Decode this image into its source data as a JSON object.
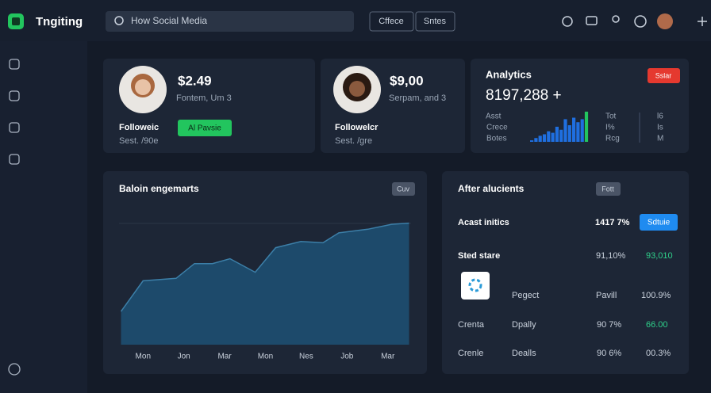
{
  "header": {
    "app_name": "Tngiting",
    "search": "How Social Media",
    "buttons": [
      "Cffece",
      "Sntes"
    ]
  },
  "profile_cards": [
    {
      "amount": "$2.49",
      "subtitle": "Fontem, Um 3",
      "name": "Followeic",
      "button": "Al Pavsie",
      "meta": "Sest. /90e"
    },
    {
      "amount": "$9,00",
      "subtitle": "Serpam, and 3",
      "name": "Followelcr",
      "meta": "Sest. /gre"
    }
  ],
  "analytics": {
    "title": "Analytics",
    "badge": "Sslar",
    "total": "8197,288 +",
    "labels": [
      "Asst",
      "Crece",
      "Botes"
    ],
    "mid_labels": [
      "Tot",
      "I%",
      "Rcg"
    ],
    "right_labels": [
      "l6",
      "Is",
      "M"
    ],
    "values": [
      2,
      5,
      8,
      10,
      14,
      12,
      20,
      16,
      30,
      22,
      32,
      26,
      30,
      40
    ],
    "ylim": [
      0,
      42
    ],
    "colors": [
      "#1f6fe0",
      "#1f6fe0",
      "#1f6fe0",
      "#1f6fe0",
      "#1f6fe0",
      "#1f6fe0",
      "#1f6fe0",
      "#1f6fe0",
      "#1f6fe0",
      "#1f6fe0",
      "#1f6fe0",
      "#1f6fe0",
      "#1f6fe0",
      "#22c55e"
    ]
  },
  "engagement": {
    "type": "area",
    "title": "Baloin engemarts",
    "badge": "Cuv",
    "color": "#1d4a6b",
    "line_color": "#3c7fa8",
    "x": [
      -0.54,
      0,
      0.81,
      1.26,
      1.7,
      2.13,
      2.75,
      3.25,
      3.87,
      4.41,
      4.8,
      5.51,
      6.09,
      6.52
    ],
    "values": [
      27,
      52,
      54,
      66,
      66,
      70,
      59,
      79,
      84,
      83,
      91,
      94,
      98,
      99
    ],
    "xlim": [
      -0.55,
      6.55
    ],
    "ylim": [
      0,
      100
    ],
    "xticks": [
      {
        "value": 0,
        "label": "Mon"
      },
      {
        "value": 1,
        "label": "Jon"
      },
      {
        "value": 2,
        "label": "Mar"
      },
      {
        "value": 3,
        "label": "Mon"
      },
      {
        "value": 4,
        "label": "Nes"
      },
      {
        "value": 5,
        "label": "Job"
      },
      {
        "value": 6,
        "label": "Mar"
      }
    ]
  },
  "activity": {
    "title": "After alucients",
    "badge": "Fott",
    "rows": [
      [
        "Acast initics",
        "1417 7%",
        "Sdtuie"
      ],
      [
        "Sted stare",
        "91,10%",
        "93,010"
      ],
      [
        "Pegect",
        "Pavill",
        "100.9%"
      ],
      [
        "Crenta",
        "Dpally",
        "90 7%",
        "66.00"
      ],
      [
        "Crenle",
        "Dealls",
        "90 6%",
        "00.3%"
      ]
    ]
  }
}
